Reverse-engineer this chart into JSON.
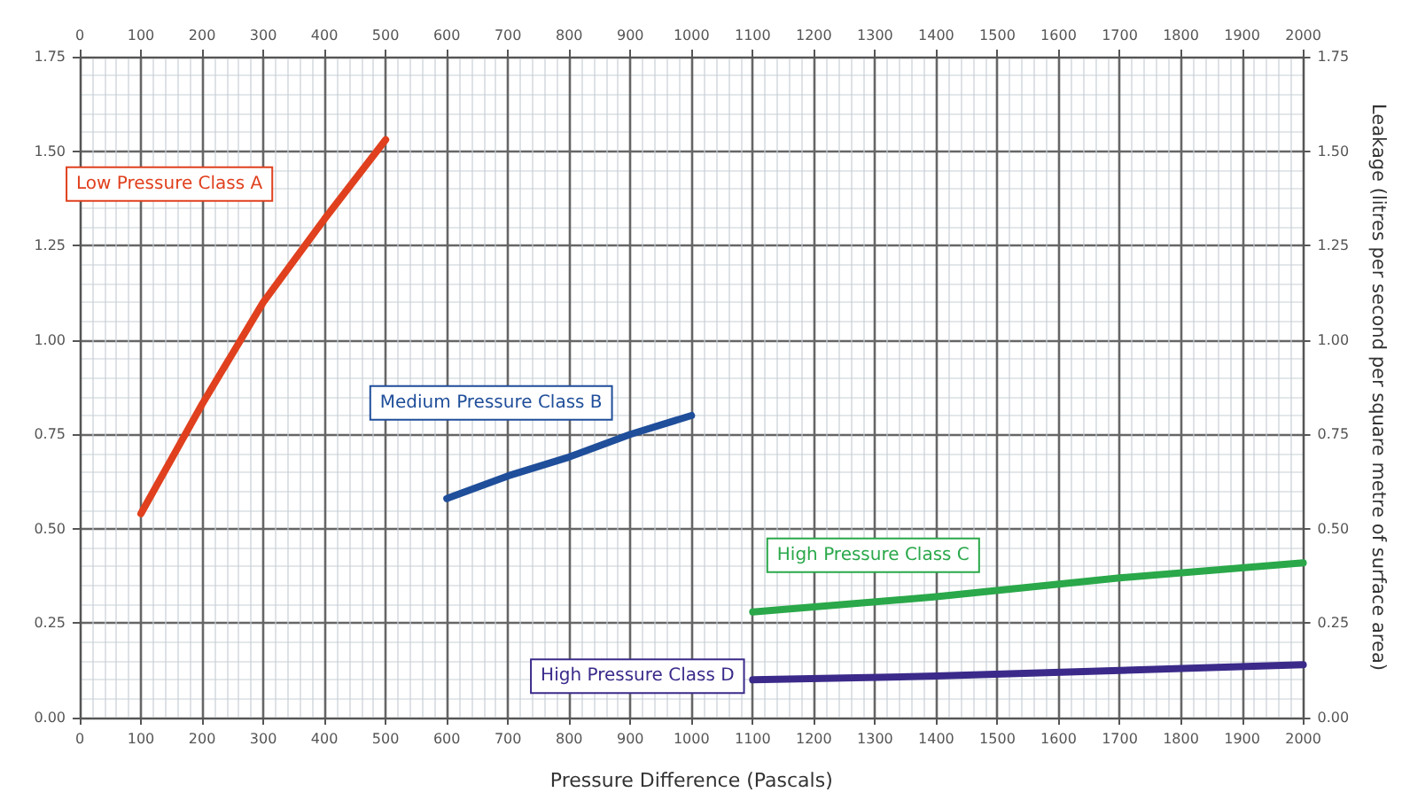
{
  "chart_data": {
    "type": "line",
    "xlabel": "Pressure Difference (Pascals)",
    "y2label": "Leakage (litres per second per square metre of surface area)",
    "series": [
      {
        "name": "Low Pressure Class A",
        "color": "#e0401e",
        "x": [
          100,
          200,
          300,
          400,
          500
        ],
        "values": [
          0.54,
          0.83,
          1.1,
          1.32,
          1.53
        ]
      },
      {
        "name": "Medium Pressure Class B",
        "color": "#1f4e9a",
        "x": [
          600,
          700,
          800,
          900,
          1000
        ],
        "values": [
          0.58,
          0.64,
          0.69,
          0.75,
          0.8
        ]
      },
      {
        "name": "High Pressure Class C",
        "color": "#2aa84a",
        "x": [
          1100,
          1400,
          1700,
          2000
        ],
        "values": [
          0.28,
          0.32,
          0.37,
          0.41
        ]
      },
      {
        "name": "High Pressure Class D",
        "color": "#3b2a8a",
        "x": [
          1100,
          1400,
          1700,
          2000
        ],
        "values": [
          0.1,
          0.11,
          0.125,
          0.14
        ]
      }
    ],
    "xlim": [
      0,
      2000
    ],
    "xticks": [
      0,
      100,
      200,
      300,
      400,
      500,
      600,
      700,
      800,
      900,
      1000,
      1100,
      1200,
      1300,
      1400,
      1500,
      1600,
      1700,
      1800,
      1900,
      2000
    ],
    "x2lim": [
      0,
      2000
    ],
    "x2ticks": [
      0,
      100,
      200,
      300,
      400,
      500,
      600,
      700,
      800,
      900,
      1000,
      1100,
      1200,
      1300,
      1400,
      1500,
      1600,
      1700,
      1800,
      1900,
      2000
    ],
    "ylim": [
      0,
      1.75
    ],
    "yticks": [
      {
        "value": 0,
        "label": "0.00"
      },
      {
        "value": 0.25,
        "label": "0.25"
      },
      {
        "value": 0.5,
        "label": "0.50"
      },
      {
        "value": 0.75,
        "label": "0.75"
      },
      {
        "value": 1,
        "label": "1.00"
      },
      {
        "value": 1.25,
        "label": "1.25"
      },
      {
        "value": 1.5,
        "label": "1.50"
      },
      {
        "value": 1.75,
        "label": "1.75"
      }
    ],
    "y2lim": [
      0,
      1.75
    ],
    "y2ticks": [
      {
        "value": 0,
        "label": "0.00"
      },
      {
        "value": 0.25,
        "label": "0.25"
      },
      {
        "value": 0.5,
        "label": "0.50"
      },
      {
        "value": 0.75,
        "label": "0.75"
      },
      {
        "value": 1,
        "label": "1.00"
      },
      {
        "value": 1.25,
        "label": "1.25"
      },
      {
        "value": 1.5,
        "label": "1.50"
      },
      {
        "value": 1.75,
        "label": "1.75"
      }
    ],
    "grid": true,
    "legend": false,
    "marker": "none",
    "line_style": "solid"
  }
}
